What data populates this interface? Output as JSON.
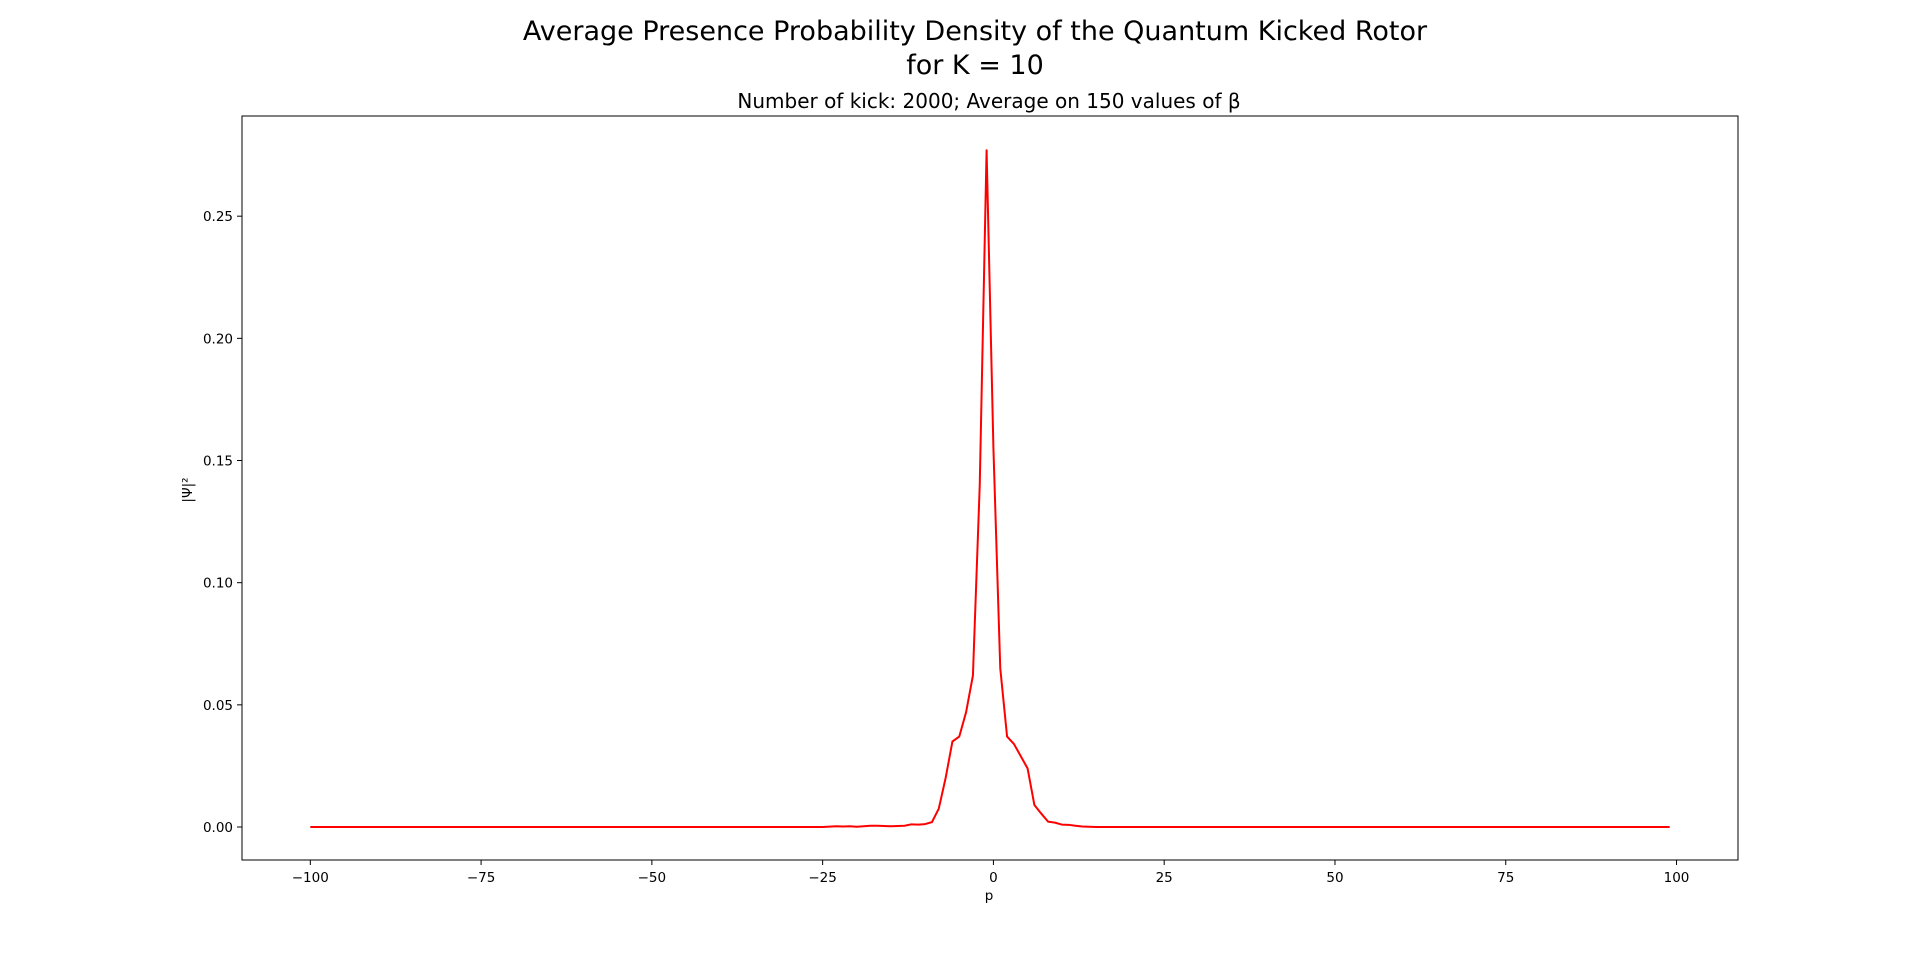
{
  "chart_data": {
    "type": "line",
    "title": "Average Presence Probability Density of the Quantum Kicked Rotor",
    "title_line2": "for K = 10",
    "subtitle": "Number of kick: 2000; Average on 150 values of β",
    "xlabel": "p",
    "ylabel": "|Ψ|²",
    "xlim": [
      -110,
      109
    ],
    "ylim": [
      -0.0135,
      0.291
    ],
    "xticks": [
      -100,
      -75,
      -50,
      -25,
      0,
      25,
      50,
      75,
      100
    ],
    "xtick_labels": [
      "−100",
      "−75",
      "−50",
      "−25",
      "0",
      "25",
      "50",
      "75",
      "100"
    ],
    "yticks": [
      0.0,
      0.05,
      0.1,
      0.15,
      0.2,
      0.25
    ],
    "ytick_labels": [
      "0.00",
      "0.05",
      "0.10",
      "0.15",
      "0.20",
      "0.25"
    ],
    "grid": false,
    "line_color": "#ff0000",
    "series": [
      {
        "x": [
          -100,
          -30,
          -25,
          -23,
          -22,
          -21,
          -20,
          -19,
          -18,
          -17,
          -16,
          -15,
          -14,
          -13,
          -12,
          -11,
          -10,
          -9,
          -8,
          -7,
          -6,
          -5,
          -4,
          -3,
          -2,
          -1,
          0,
          1,
          2,
          3,
          4,
          5,
          6,
          7,
          8,
          9,
          10,
          11,
          12,
          13,
          14,
          15,
          20,
          30,
          99
        ],
        "y": [
          0.0,
          0.0,
          0.0,
          0.0003,
          0.0002,
          0.0003,
          0.0001,
          0.0003,
          0.0005,
          0.0005,
          0.0004,
          0.0003,
          0.0004,
          0.0005,
          0.0011,
          0.001,
          0.0012,
          0.002,
          0.0075,
          0.02,
          0.035,
          0.037,
          0.047,
          0.062,
          0.14,
          0.277,
          0.155,
          0.065,
          0.037,
          0.034,
          0.029,
          0.024,
          0.009,
          0.0055,
          0.0022,
          0.0018,
          0.001,
          0.0009,
          0.0005,
          0.0002,
          0.0001,
          0.0,
          0.0,
          0.0,
          0.0
        ]
      }
    ]
  }
}
